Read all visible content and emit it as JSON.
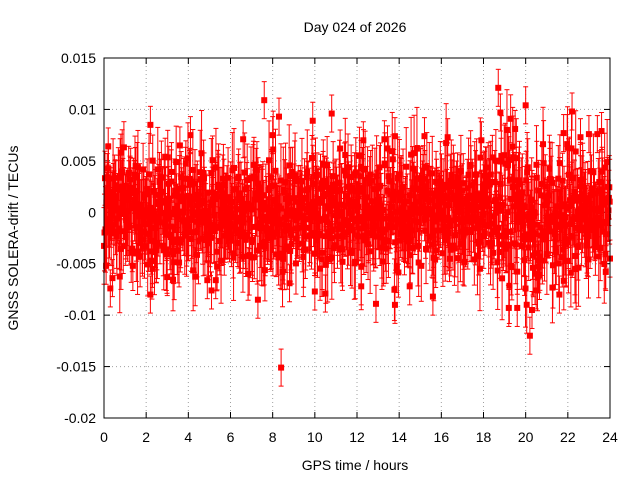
{
  "chart_data": {
    "type": "scatter",
    "title": "Day 024 of 2026",
    "xlabel": "GPS time / hours",
    "ylabel": "GNSS SOLERA-drift / TECUs",
    "xlim": [
      0,
      24
    ],
    "ylim": [
      -0.02,
      0.015
    ],
    "xticks": [
      0,
      2,
      4,
      6,
      8,
      10,
      12,
      14,
      16,
      18,
      20,
      22,
      24
    ],
    "xtick_labels": [
      "0",
      "2",
      "4",
      "6",
      "8",
      "10",
      "12",
      "14",
      "16",
      "18",
      "20",
      "22",
      "24"
    ],
    "yticks": [
      -0.02,
      -0.015,
      -0.01,
      -0.005,
      0,
      0.005,
      0.01,
      0.015
    ],
    "ytick_labels": [
      "-0.02",
      "-0.015",
      "-0.01",
      "-0.005",
      "0",
      "0.005",
      "0.01",
      "0.015"
    ],
    "grid": true,
    "marker_color": "#ff0000",
    "error_bars": true,
    "points": [
      {
        "x": 0.1,
        "y": -0.0052
      },
      {
        "x": 0.2,
        "y": 0.0064
      },
      {
        "x": 0.3,
        "y": -0.0074
      },
      {
        "x": 0.4,
        "y": -0.0064
      },
      {
        "x": 0.8,
        "y": 0.0058
      },
      {
        "x": 1.5,
        "y": 0.0045
      },
      {
        "x": 2.2,
        "y": 0.0085
      },
      {
        "x": 2.2,
        "y": -0.008
      },
      {
        "x": 2.3,
        "y": -0.0055
      },
      {
        "x": 2.9,
        "y": 0.0054
      },
      {
        "x": 3.0,
        "y": -0.0063
      },
      {
        "x": 3.6,
        "y": 0.0065
      },
      {
        "x": 4.1,
        "y": 0.0075
      },
      {
        "x": 4.9,
        "y": -0.0066
      },
      {
        "x": 5.1,
        "y": -0.0076
      },
      {
        "x": 5.3,
        "y": -0.0066
      },
      {
        "x": 6.6,
        "y": 0.0071
      },
      {
        "x": 7.3,
        "y": -0.0085
      },
      {
        "x": 7.6,
        "y": 0.0109
      },
      {
        "x": 8.0,
        "y": 0.0075
      },
      {
        "x": 8.3,
        "y": 0.0093
      },
      {
        "x": 8.4,
        "y": -0.0151
      },
      {
        "x": 8.8,
        "y": -0.0069
      },
      {
        "x": 9.9,
        "y": 0.0089
      },
      {
        "x": 10.0,
        "y": -0.0077
      },
      {
        "x": 10.5,
        "y": -0.0079
      },
      {
        "x": 10.8,
        "y": 0.0096
      },
      {
        "x": 11.2,
        "y": 0.0062
      },
      {
        "x": 12.2,
        "y": -0.0072
      },
      {
        "x": 12.3,
        "y": 0.007
      },
      {
        "x": 12.9,
        "y": -0.0089
      },
      {
        "x": 13.3,
        "y": 0.0071
      },
      {
        "x": 13.8,
        "y": -0.009
      },
      {
        "x": 13.8,
        "y": 0.0074
      },
      {
        "x": 14.5,
        "y": -0.0072
      },
      {
        "x": 15.2,
        "y": 0.0074
      },
      {
        "x": 15.6,
        "y": -0.0082
      },
      {
        "x": 16.3,
        "y": 0.0073
      },
      {
        "x": 17.9,
        "y": 0.007
      },
      {
        "x": 18.7,
        "y": 0.0121
      },
      {
        "x": 18.8,
        "y": 0.0097
      },
      {
        "x": 19.2,
        "y": -0.0093
      },
      {
        "x": 19.5,
        "y": 0.0081
      },
      {
        "x": 19.6,
        "y": -0.0093
      },
      {
        "x": 20.0,
        "y": 0.0104
      },
      {
        "x": 20.2,
        "y": -0.012
      },
      {
        "x": 20.3,
        "y": -0.0095
      },
      {
        "x": 20.5,
        "y": -0.0076
      },
      {
        "x": 21.6,
        "y": -0.008
      },
      {
        "x": 21.8,
        "y": 0.0077
      },
      {
        "x": 22.2,
        "y": 0.0098
      },
      {
        "x": 22.6,
        "y": 0.0073
      },
      {
        "x": 23.0,
        "y": 0.0076
      },
      {
        "x": 23.4,
        "y": 0.0076
      },
      {
        "x": 23.6,
        "y": 0.0079
      },
      {
        "x": 23.8,
        "y": -0.0058
      },
      {
        "x": 24.0,
        "y": -0.0045
      }
    ],
    "dense_band": {
      "type": "scatter",
      "description_values": {
        "x_start": 0,
        "x_end": 24,
        "count": 1200,
        "center_y": 0.0,
        "spread_y": 0.0025,
        "error_y": 0.003
      }
    }
  }
}
